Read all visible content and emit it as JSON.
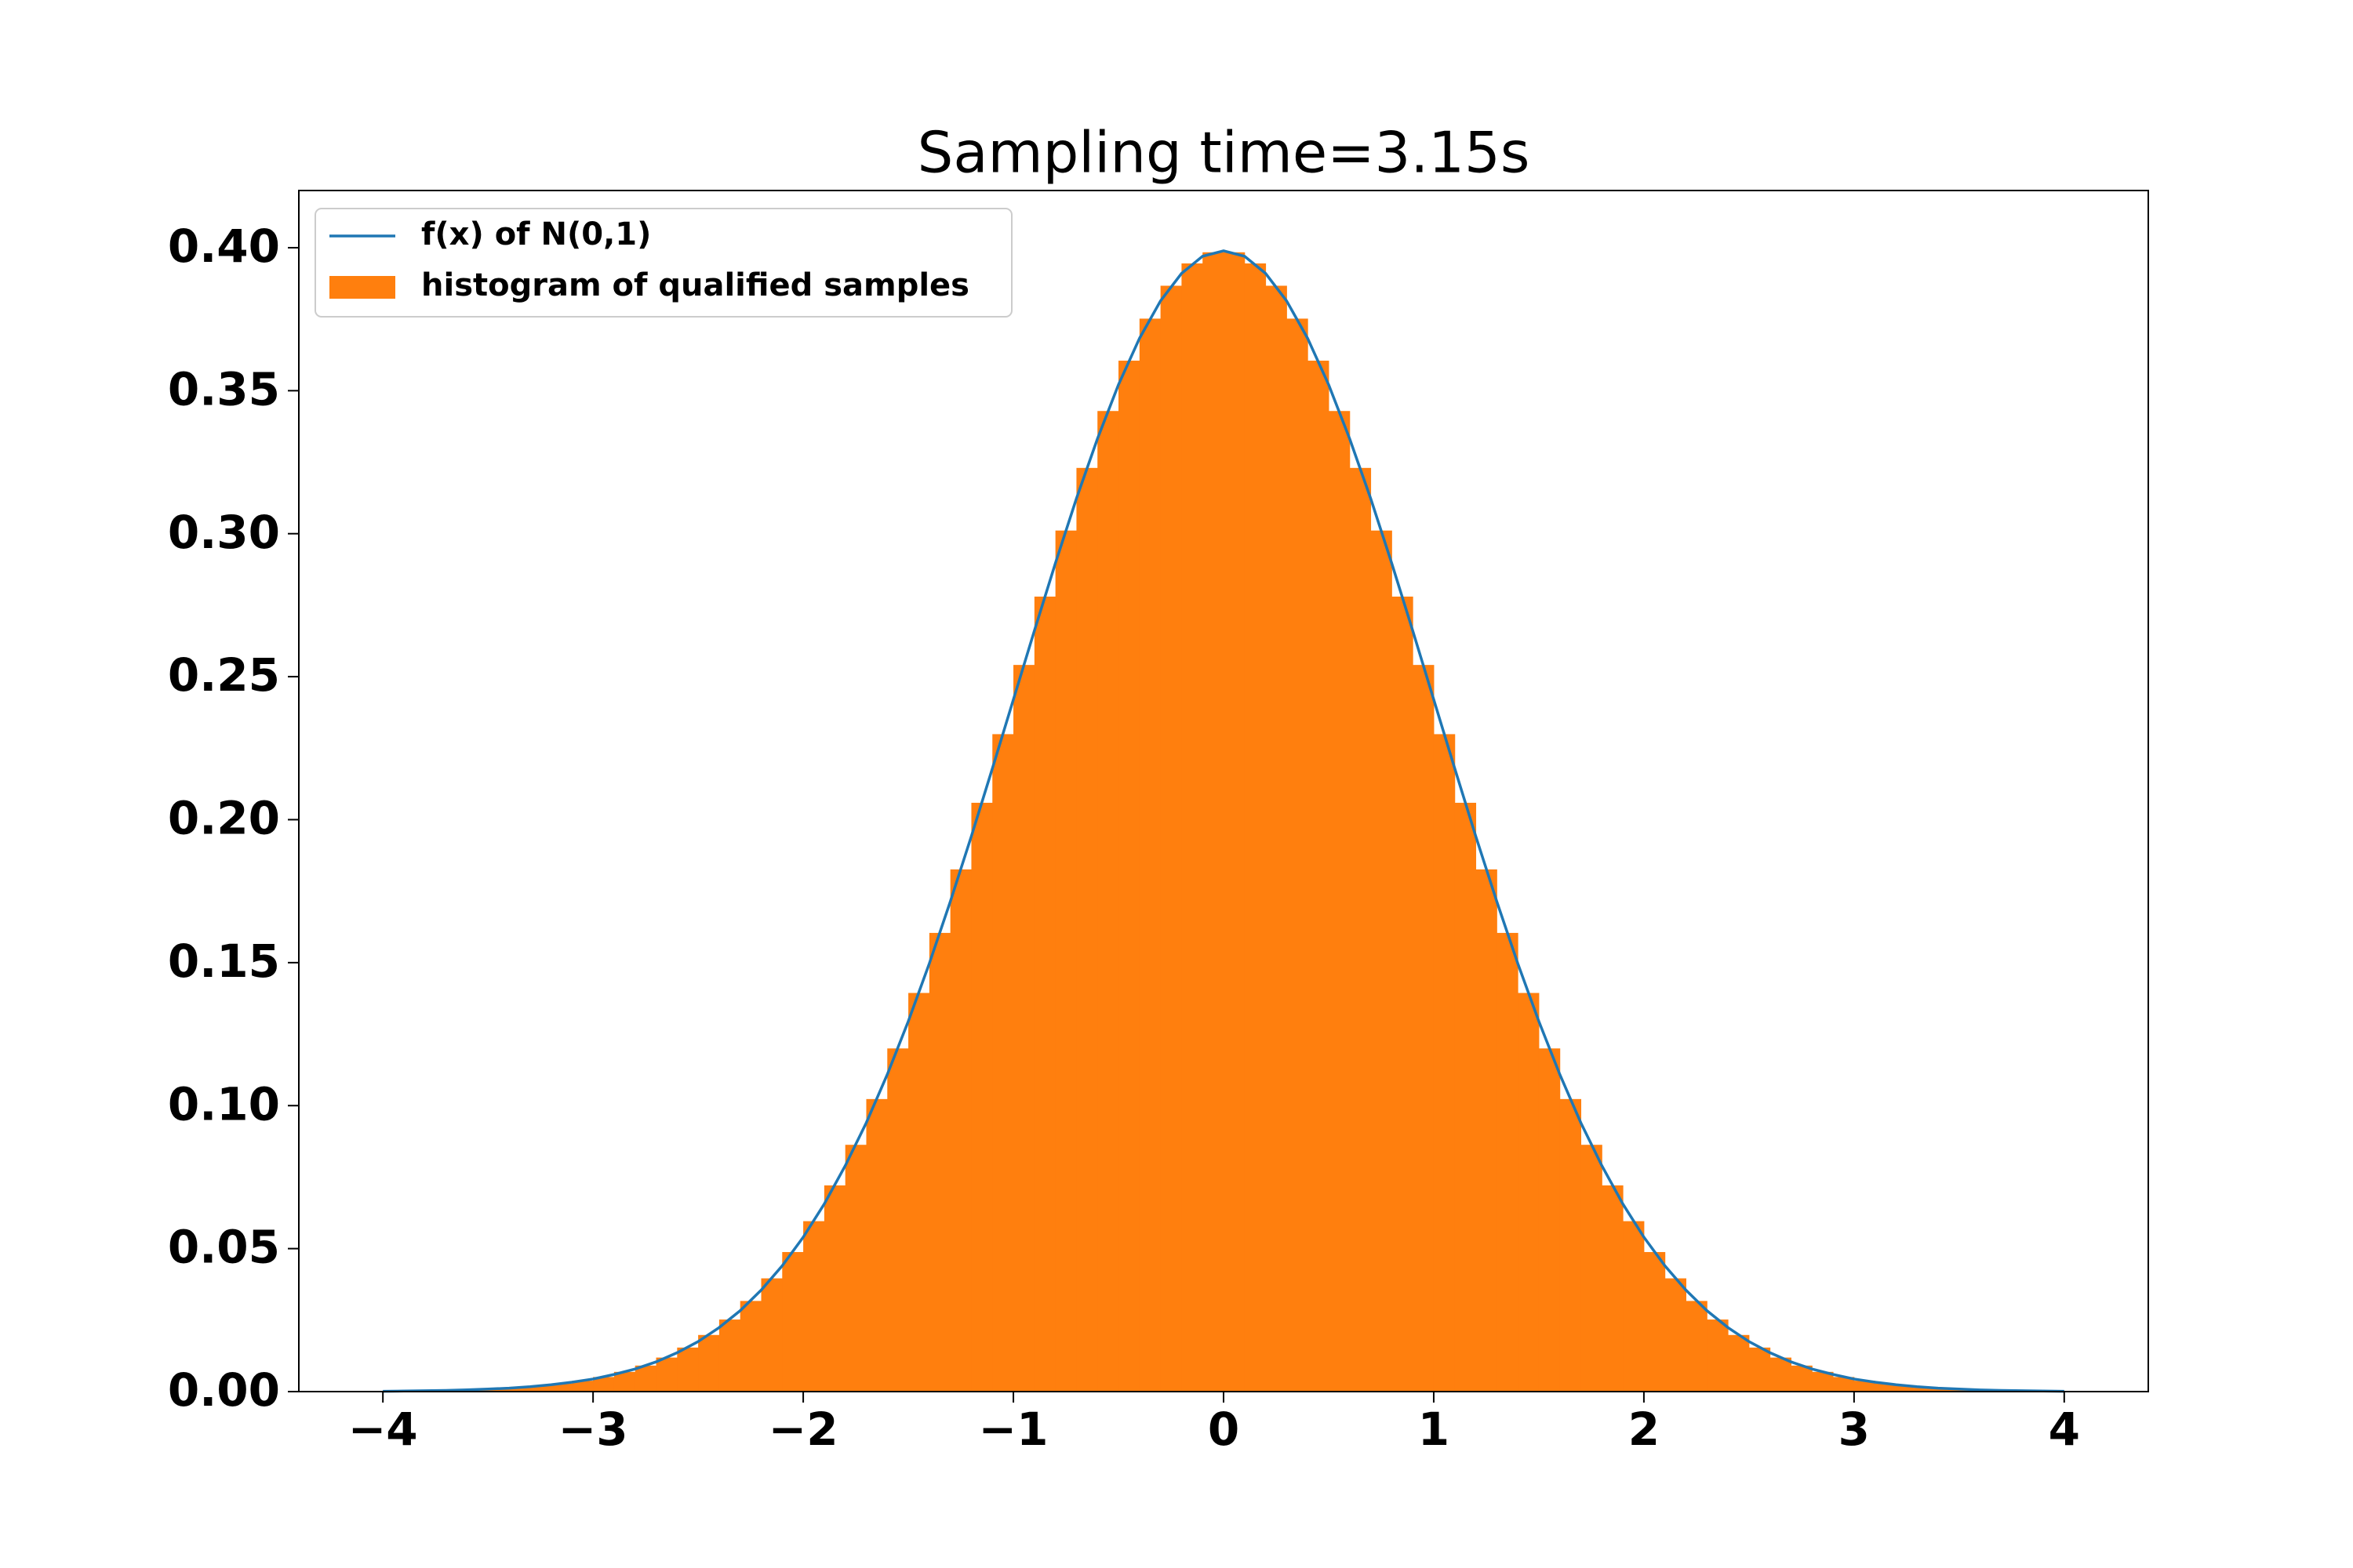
{
  "chart_data": {
    "type": "histogram",
    "title": "Sampling time=3.15s",
    "name": "histogram of qualified samples",
    "color": "#ff7f0e",
    "bins": [
      -4,
      -3.9,
      -3.8,
      -3.7,
      -3.6,
      -3.5,
      -3.4,
      -3.3,
      -3.2,
      -3.1,
      -3,
      -2.9,
      -2.8,
      -2.7,
      -2.6,
      -2.5,
      -2.4,
      -2.3,
      -2.2,
      -2.1,
      -2,
      -1.9,
      -1.8,
      -1.7,
      -1.6,
      -1.5,
      -1.4,
      -1.3,
      -1.2,
      -1.1,
      -1,
      -0.9,
      -0.8,
      -0.7,
      -0.6,
      -0.5,
      -0.4,
      -0.3,
      -0.2,
      -0.1,
      0,
      0.1,
      0.2,
      0.3,
      0.4,
      0.5,
      0.6,
      0.7,
      0.8,
      0.9,
      1,
      1.1,
      1.2,
      1.3,
      1.4,
      1.5,
      1.6,
      1.7,
      1.8,
      1.9,
      2,
      2.1,
      2.2,
      2.3,
      2.4,
      2.5,
      2.6,
      2.7,
      2.8,
      2.9,
      3,
      3.1,
      3.2,
      3.3,
      3.4,
      3.5,
      3.6,
      3.7,
      3.8,
      3.9,
      4
    ],
    "values": [
      0.0002,
      0.0002,
      0.0004,
      0.0005,
      0.0007,
      0.001,
      0.0015,
      0.002,
      0.0028,
      0.0038,
      0.0051,
      0.0069,
      0.0091,
      0.0119,
      0.0154,
      0.0198,
      0.0252,
      0.0317,
      0.0396,
      0.0488,
      0.0596,
      0.0721,
      0.0863,
      0.1023,
      0.12,
      0.1394,
      0.1604,
      0.1826,
      0.2059,
      0.2299,
      0.2541,
      0.278,
      0.3011,
      0.323,
      0.3429,
      0.3605,
      0.3752,
      0.3867,
      0.3945,
      0.3984,
      0.3984,
      0.3945,
      0.3867,
      0.3752,
      0.3605,
      0.3429,
      0.323,
      0.3011,
      0.278,
      0.2541,
      0.2299,
      0.2059,
      0.1826,
      0.1604,
      0.1394,
      0.12,
      0.1023,
      0.0863,
      0.0721,
      0.0596,
      0.0488,
      0.0396,
      0.0317,
      0.0252,
      0.0198,
      0.0154,
      0.0119,
      0.0091,
      0.0069,
      0.0051,
      0.0038,
      0.0028,
      0.002,
      0.0015,
      0.001,
      0.0007,
      0.0005,
      0.0004,
      0.0002,
      0.0002
    ],
    "line": {
      "name": "f(x) of N(0,1)",
      "color": "#1f77b4",
      "x": [
        -4,
        -3.9,
        -3.8,
        -3.7,
        -3.6,
        -3.5,
        -3.4,
        -3.3,
        -3.2,
        -3.1,
        -3,
        -2.9,
        -2.8,
        -2.7,
        -2.6,
        -2.5,
        -2.4,
        -2.3,
        -2.2,
        -2.1,
        -2,
        -1.9,
        -1.8,
        -1.7,
        -1.6,
        -1.5,
        -1.4,
        -1.3,
        -1.2,
        -1.1,
        -1,
        -0.9,
        -0.8,
        -0.7,
        -0.6,
        -0.5,
        -0.4,
        -0.3,
        -0.2,
        -0.1,
        0,
        0.1,
        0.2,
        0.3,
        0.4,
        0.5,
        0.6,
        0.7,
        0.8,
        0.9,
        1,
        1.1,
        1.2,
        1.3,
        1.4,
        1.5,
        1.6,
        1.7,
        1.8,
        1.9,
        2,
        2.1,
        2.2,
        2.3,
        2.4,
        2.5,
        2.6,
        2.7,
        2.8,
        2.9,
        3,
        3.1,
        3.2,
        3.3,
        3.4,
        3.5,
        3.6,
        3.7,
        3.8,
        3.9,
        4
      ],
      "values": [
        0.0001,
        0.0002,
        0.0003,
        0.0004,
        0.0006,
        0.0009,
        0.0012,
        0.0017,
        0.0024,
        0.0033,
        0.0044,
        0.006,
        0.0079,
        0.0104,
        0.0136,
        0.0175,
        0.0224,
        0.0283,
        0.0355,
        0.044,
        0.054,
        0.0656,
        0.079,
        0.094,
        0.1109,
        0.1295,
        0.1497,
        0.1714,
        0.1942,
        0.2179,
        0.242,
        0.2661,
        0.2897,
        0.3123,
        0.3332,
        0.3521,
        0.3683,
        0.3814,
        0.391,
        0.397,
        0.3989,
        0.397,
        0.391,
        0.3814,
        0.3683,
        0.3521,
        0.3332,
        0.3123,
        0.2897,
        0.2661,
        0.242,
        0.2179,
        0.1942,
        0.1714,
        0.1497,
        0.1295,
        0.1109,
        0.094,
        0.079,
        0.0656,
        0.054,
        0.044,
        0.0355,
        0.0283,
        0.0224,
        0.0175,
        0.0136,
        0.0104,
        0.0079,
        0.006,
        0.0044,
        0.0033,
        0.0024,
        0.0017,
        0.0012,
        0.0009,
        0.0006,
        0.0004,
        0.0003,
        0.0002,
        0.0001
      ]
    },
    "xlim": [
      -4.4,
      4.4
    ],
    "ylim": [
      0,
      0.42
    ],
    "xticks": [
      {
        "value": -4,
        "label": "−4"
      },
      {
        "value": -3,
        "label": "−3"
      },
      {
        "value": -2,
        "label": "−2"
      },
      {
        "value": -1,
        "label": "−1"
      },
      0,
      1,
      2,
      3,
      4
    ],
    "yticks": [
      {
        "value": 0,
        "label": "0.00"
      },
      {
        "value": 0.05,
        "label": "0.05"
      },
      {
        "value": 0.1,
        "label": "0.10"
      },
      {
        "value": 0.15,
        "label": "0.15"
      },
      {
        "value": 0.2,
        "label": "0.20"
      },
      {
        "value": 0.25,
        "label": "0.25"
      },
      {
        "value": 0.3,
        "label": "0.30"
      },
      {
        "value": 0.35,
        "label": "0.35"
      },
      {
        "value": 0.4,
        "label": "0.40"
      }
    ],
    "legend": "upper left"
  }
}
